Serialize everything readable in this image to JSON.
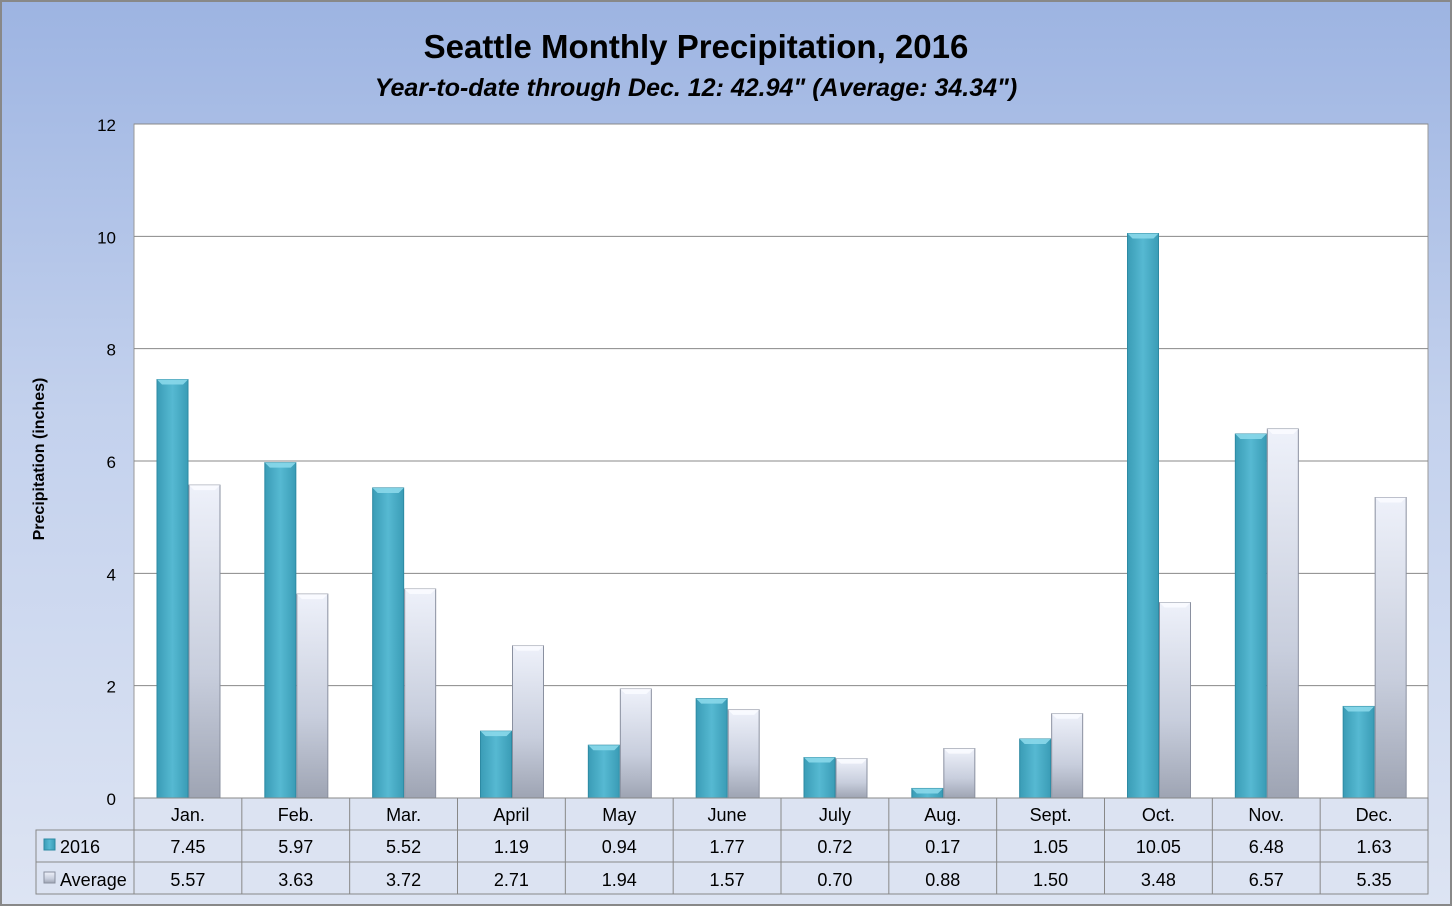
{
  "chart_data": {
    "type": "bar",
    "title": "Seattle Monthly Precipitation, 2016",
    "subtitle": "Year-to-date through Dec. 12: 42.94\" (Average: 34.34\")",
    "xlabel": "",
    "ylabel": "Precipitation (inches)",
    "ylim": [
      0,
      12
    ],
    "yticks": [
      "0",
      "2",
      "4",
      "6",
      "8",
      "10",
      "12"
    ],
    "grid": true,
    "legend": "data-table",
    "categories": [
      "Jan.",
      "Feb.",
      "Mar.",
      "April",
      "May",
      "June",
      "July",
      "Aug.",
      "Sept.",
      "Oct.",
      "Nov.",
      "Dec."
    ],
    "series": [
      {
        "name": "2016",
        "color": "#4bafc8",
        "values": [
          7.45,
          5.97,
          5.52,
          1.19,
          0.94,
          1.77,
          0.72,
          0.17,
          1.05,
          10.05,
          6.48,
          1.63
        ],
        "labels": [
          "7.45",
          "5.97",
          "5.52",
          "1.19",
          "0.94",
          "1.77",
          "0.72",
          "0.17",
          "1.05",
          "10.05",
          "6.48",
          "1.63"
        ]
      },
      {
        "name": "Average",
        "color": "#c9cfdf",
        "values": [
          5.57,
          3.63,
          3.72,
          2.71,
          1.94,
          1.57,
          0.7,
          0.88,
          1.5,
          3.48,
          6.57,
          5.35
        ],
        "labels": [
          "5.57",
          "3.63",
          "3.72",
          "2.71",
          "1.94",
          "1.57",
          "0.70",
          "0.88",
          "1.50",
          "3.48",
          "6.57",
          "5.35"
        ]
      }
    ]
  }
}
